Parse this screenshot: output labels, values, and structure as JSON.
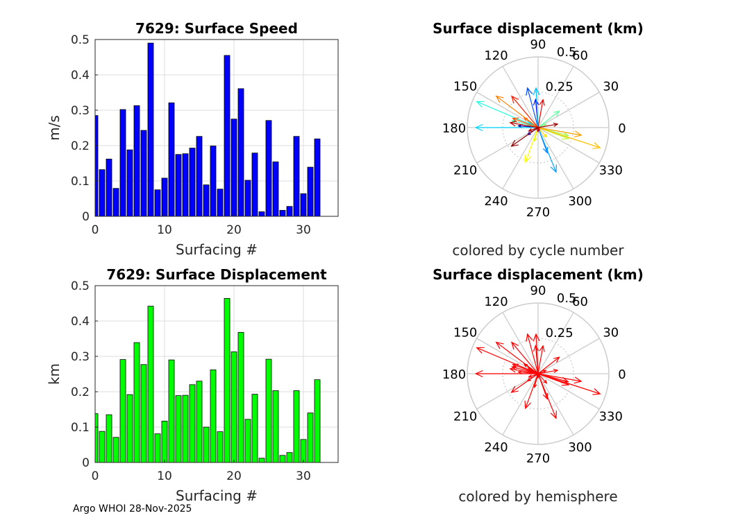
{
  "credit": "Argo WHOI 28-Nov-2025",
  "colors": {
    "speed_bar": "#0000ff",
    "displacement_bar": "#00ff00",
    "hemisphere_arrow": "#ff0000",
    "grid": "#dcdcdc",
    "polar_grid": "#cccccc",
    "bar_edge": "#000000"
  },
  "chart_data": [
    {
      "type": "bar",
      "title": "7629: Surface Speed",
      "xlabel": "Surfacing #",
      "ylabel": "m/s",
      "xlim": [
        0,
        35
      ],
      "ylim": [
        0,
        0.5
      ],
      "xticks": [
        0,
        10,
        20,
        30
      ],
      "xtick_labels": [
        "0",
        "10",
        "20",
        "30"
      ],
      "yticks": [
        0,
        0.1,
        0.2,
        0.3,
        0.4,
        0.5
      ],
      "ytick_labels": [
        "0",
        "0.1",
        "0.2",
        "0.3",
        "0.4",
        "0.5"
      ],
      "grid": true,
      "color": "#0000ff",
      "categories": [
        0,
        1,
        2,
        3,
        4,
        5,
        6,
        7,
        8,
        9,
        10,
        11,
        12,
        13,
        14,
        15,
        16,
        17,
        18,
        19,
        20,
        21,
        22,
        23,
        24,
        25,
        26,
        27,
        28,
        29,
        30,
        31,
        32
      ],
      "values": [
        0.285,
        0.132,
        0.162,
        0.079,
        0.302,
        0.188,
        0.313,
        0.243,
        0.49,
        0.075,
        0.108,
        0.321,
        0.175,
        0.177,
        0.193,
        0.226,
        0.089,
        0.199,
        0.077,
        0.455,
        0.275,
        0.361,
        0.102,
        0.179,
        0.013,
        0.271,
        0.154,
        0.017,
        0.028,
        0.226,
        0.064,
        0.139,
        0.219
      ]
    },
    {
      "type": "polar-vector",
      "title": "Surface displacement (km)",
      "subtitle": "colored by cycle number",
      "rmax": 0.5,
      "rticks": [
        0.25,
        0.5
      ],
      "rtick_labels": [
        "0.25",
        "0.5"
      ],
      "angle_ticks": [
        0,
        30,
        60,
        90,
        120,
        150,
        180,
        210,
        240,
        270,
        300,
        330
      ],
      "angle_tick_labels": [
        "0",
        "30",
        "60",
        "90",
        "120",
        "150",
        "180",
        "210",
        "240",
        "270",
        "300",
        "330"
      ],
      "vectors": [
        {
          "angle_deg": 175,
          "magnitude": 0.14,
          "color": "#0000aa"
        },
        {
          "angle_deg": 215,
          "magnitude": 0.09,
          "color": "#0000dd"
        },
        {
          "angle_deg": 95,
          "magnitude": 0.2,
          "color": "#0000ff"
        },
        {
          "angle_deg": 160,
          "magnitude": 0.07,
          "color": "#0022ff"
        },
        {
          "angle_deg": 105,
          "magnitude": 0.29,
          "color": "#0050ff"
        },
        {
          "angle_deg": 290,
          "magnitude": 0.19,
          "color": "#0080ff"
        },
        {
          "angle_deg": 292,
          "magnitude": 0.34,
          "color": "#00a0ff"
        },
        {
          "angle_deg": 93,
          "magnitude": 0.28,
          "color": "#00c0ff"
        },
        {
          "angle_deg": 180,
          "magnitude": 0.44,
          "color": "#00d8ff"
        },
        {
          "angle_deg": 150,
          "magnitude": 0.08,
          "color": "#00eeff"
        },
        {
          "angle_deg": 157,
          "magnitude": 0.47,
          "color": "#20ffdf"
        },
        {
          "angle_deg": 165,
          "magnitude": 0.19,
          "color": "#40ffbf"
        },
        {
          "angle_deg": 38,
          "magnitude": 0.19,
          "color": "#60ff9f"
        },
        {
          "angle_deg": 22,
          "magnitude": 0.06,
          "color": "#80ff80"
        },
        {
          "angle_deg": 345,
          "magnitude": 0.22,
          "color": "#9fff60"
        },
        {
          "angle_deg": 340,
          "magnitude": 0.23,
          "color": "#bfff40"
        },
        {
          "angle_deg": 255,
          "magnitude": 0.1,
          "color": "#dfff20"
        },
        {
          "angle_deg": 250,
          "magnitude": 0.26,
          "color": "#ffff00"
        },
        {
          "angle_deg": 312,
          "magnitude": 0.09,
          "color": "#ffe000"
        },
        {
          "angle_deg": 342,
          "magnitude": 0.46,
          "color": "#ffc000"
        },
        {
          "angle_deg": 350,
          "magnitude": 0.31,
          "color": "#ffa000"
        },
        {
          "angle_deg": 143,
          "magnitude": 0.37,
          "color": "#ff8000"
        },
        {
          "angle_deg": 145,
          "magnitude": 0.12,
          "color": "#ff6a00"
        },
        {
          "angle_deg": 160,
          "magnitude": 0.19,
          "color": "#ff5000"
        },
        {
          "angle_deg": 0,
          "magnitude": 0.01,
          "color": "#ff3a00"
        },
        {
          "angle_deg": 130,
          "magnitude": 0.29,
          "color": "#ff2000"
        },
        {
          "angle_deg": 80,
          "magnitude": 0.2,
          "color": "#f00000"
        },
        {
          "angle_deg": 300,
          "magnitude": 0.02,
          "color": "#e00000"
        },
        {
          "angle_deg": 270,
          "magnitude": 0.03,
          "color": "#d00000"
        },
        {
          "angle_deg": 170,
          "magnitude": 0.2,
          "color": "#c00000"
        },
        {
          "angle_deg": 200,
          "magnitude": 0.07,
          "color": "#b00000"
        },
        {
          "angle_deg": 10,
          "magnitude": 0.14,
          "color": "#a00000"
        },
        {
          "angle_deg": 215,
          "magnitude": 0.23,
          "color": "#900000"
        }
      ]
    },
    {
      "type": "bar",
      "title": "7629: Surface Displacement",
      "xlabel": "Surfacing #",
      "ylabel": "km",
      "xlim": [
        0,
        35
      ],
      "ylim": [
        0,
        0.5
      ],
      "xticks": [
        0,
        10,
        20,
        30
      ],
      "xtick_labels": [
        "0",
        "10",
        "20",
        "30"
      ],
      "yticks": [
        0,
        0.1,
        0.2,
        0.3,
        0.4,
        0.5
      ],
      "ytick_labels": [
        "0",
        "0.1",
        "0.2",
        "0.3",
        "0.4",
        "0.5"
      ],
      "grid": true,
      "color": "#00ff00",
      "categories": [
        0,
        1,
        2,
        3,
        4,
        5,
        6,
        7,
        8,
        9,
        10,
        11,
        12,
        13,
        14,
        15,
        16,
        17,
        18,
        19,
        20,
        21,
        22,
        23,
        24,
        25,
        26,
        27,
        28,
        29,
        30,
        31,
        32
      ],
      "values": [
        0.138,
        0.088,
        0.135,
        0.071,
        0.291,
        0.192,
        0.339,
        0.277,
        0.442,
        0.081,
        0.117,
        0.29,
        0.189,
        0.19,
        0.22,
        0.23,
        0.1,
        0.262,
        0.087,
        0.464,
        0.313,
        0.368,
        0.122,
        0.193,
        0.012,
        0.292,
        0.203,
        0.02,
        0.028,
        0.203,
        0.065,
        0.14,
        0.234
      ]
    },
    {
      "type": "polar-vector",
      "title": "Surface displacement (km)",
      "subtitle": "colored by hemisphere",
      "rmax": 0.5,
      "rticks": [
        0.25,
        0.5
      ],
      "rtick_labels": [
        "0.25",
        "0.5"
      ],
      "angle_ticks": [
        0,
        30,
        60,
        90,
        120,
        150,
        180,
        210,
        240,
        270,
        300,
        330
      ],
      "angle_tick_labels": [
        "0",
        "30",
        "60",
        "90",
        "120",
        "150",
        "180",
        "210",
        "240",
        "270",
        "300",
        "330"
      ],
      "vectors": [
        {
          "angle_deg": 175,
          "magnitude": 0.14,
          "color": "#ff0000"
        },
        {
          "angle_deg": 215,
          "magnitude": 0.09,
          "color": "#ff0000"
        },
        {
          "angle_deg": 95,
          "magnitude": 0.2,
          "color": "#ff0000"
        },
        {
          "angle_deg": 160,
          "magnitude": 0.07,
          "color": "#ff0000"
        },
        {
          "angle_deg": 105,
          "magnitude": 0.29,
          "color": "#ff0000"
        },
        {
          "angle_deg": 290,
          "magnitude": 0.19,
          "color": "#ff0000"
        },
        {
          "angle_deg": 292,
          "magnitude": 0.34,
          "color": "#ff0000"
        },
        {
          "angle_deg": 93,
          "magnitude": 0.28,
          "color": "#ff0000"
        },
        {
          "angle_deg": 180,
          "magnitude": 0.44,
          "color": "#ff0000"
        },
        {
          "angle_deg": 150,
          "magnitude": 0.08,
          "color": "#ff0000"
        },
        {
          "angle_deg": 157,
          "magnitude": 0.47,
          "color": "#ff0000"
        },
        {
          "angle_deg": 165,
          "magnitude": 0.19,
          "color": "#ff0000"
        },
        {
          "angle_deg": 38,
          "magnitude": 0.19,
          "color": "#ff0000"
        },
        {
          "angle_deg": 22,
          "magnitude": 0.06,
          "color": "#ff0000"
        },
        {
          "angle_deg": 345,
          "magnitude": 0.22,
          "color": "#ff0000"
        },
        {
          "angle_deg": 340,
          "magnitude": 0.23,
          "color": "#ff0000"
        },
        {
          "angle_deg": 255,
          "magnitude": 0.1,
          "color": "#ff0000"
        },
        {
          "angle_deg": 250,
          "magnitude": 0.26,
          "color": "#ff0000"
        },
        {
          "angle_deg": 312,
          "magnitude": 0.09,
          "color": "#ff0000"
        },
        {
          "angle_deg": 342,
          "magnitude": 0.46,
          "color": "#ff0000"
        },
        {
          "angle_deg": 350,
          "magnitude": 0.31,
          "color": "#ff0000"
        },
        {
          "angle_deg": 143,
          "magnitude": 0.37,
          "color": "#ff0000"
        },
        {
          "angle_deg": 145,
          "magnitude": 0.12,
          "color": "#ff0000"
        },
        {
          "angle_deg": 160,
          "magnitude": 0.19,
          "color": "#ff0000"
        },
        {
          "angle_deg": 0,
          "magnitude": 0.01,
          "color": "#ff0000"
        },
        {
          "angle_deg": 130,
          "magnitude": 0.29,
          "color": "#ff0000"
        },
        {
          "angle_deg": 80,
          "magnitude": 0.2,
          "color": "#ff0000"
        },
        {
          "angle_deg": 300,
          "magnitude": 0.02,
          "color": "#ff0000"
        },
        {
          "angle_deg": 270,
          "magnitude": 0.03,
          "color": "#ff0000"
        },
        {
          "angle_deg": 170,
          "magnitude": 0.2,
          "color": "#ff0000"
        },
        {
          "angle_deg": 200,
          "magnitude": 0.07,
          "color": "#ff0000"
        },
        {
          "angle_deg": 10,
          "magnitude": 0.14,
          "color": "#ff0000"
        },
        {
          "angle_deg": 215,
          "magnitude": 0.23,
          "color": "#ff0000"
        }
      ]
    }
  ]
}
